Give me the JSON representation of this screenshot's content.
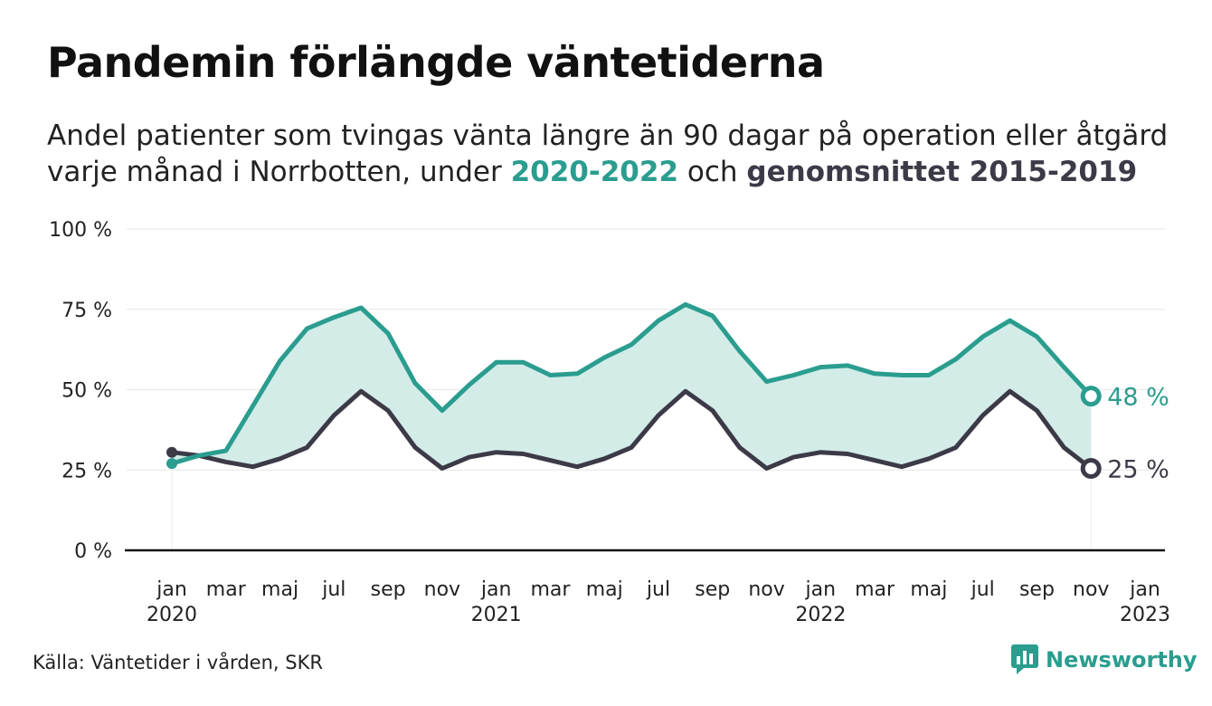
{
  "colors": {
    "series_2020_2022": "#2a9d8f",
    "series_avg": "#3c3a47",
    "area_fill": "#d3ece8",
    "grid": "#e6e6e6",
    "axis": "#111111"
  },
  "title": "Pandemin förlängde väntetiderna",
  "subtitle": {
    "line1": "Andel patienter som tvingas vänta längre än 90 dagar på operation eller åtgärd",
    "line2_prefix": "varje månad i Norrbotten, under ",
    "highlight_a": "2020-2022",
    "middle": " och ",
    "highlight_b": "genomsnittet 2015-2019"
  },
  "source": "Källa: Väntetider i vården, SKR",
  "logo": {
    "text": "Newsworthy",
    "icon": "newsworthy-bar-chart-icon"
  },
  "chart_data": {
    "type": "area",
    "y_ticks": [
      "0 %",
      "25 %",
      "50 %",
      "75 %",
      "100 %"
    ],
    "ylim": [
      0,
      100
    ],
    "x_ticks": [
      {
        "date": "2020-01",
        "label": "jan",
        "year": "2020"
      },
      {
        "date": "2020-03",
        "label": "mar",
        "year": ""
      },
      {
        "date": "2020-05",
        "label": "maj",
        "year": ""
      },
      {
        "date": "2020-07",
        "label": "jul",
        "year": ""
      },
      {
        "date": "2020-09",
        "label": "sep",
        "year": ""
      },
      {
        "date": "2020-11",
        "label": "nov",
        "year": ""
      },
      {
        "date": "2021-01",
        "label": "jan",
        "year": "2021"
      },
      {
        "date": "2021-03",
        "label": "mar",
        "year": ""
      },
      {
        "date": "2021-05",
        "label": "maj",
        "year": ""
      },
      {
        "date": "2021-07",
        "label": "jul",
        "year": ""
      },
      {
        "date": "2021-09",
        "label": "sep",
        "year": ""
      },
      {
        "date": "2021-11",
        "label": "nov",
        "year": ""
      },
      {
        "date": "2022-01",
        "label": "jan",
        "year": "2022"
      },
      {
        "date": "2022-03",
        "label": "mar",
        "year": ""
      },
      {
        "date": "2022-05",
        "label": "maj",
        "year": ""
      },
      {
        "date": "2022-07",
        "label": "jul",
        "year": ""
      },
      {
        "date": "2022-09",
        "label": "sep",
        "year": ""
      },
      {
        "date": "2022-11",
        "label": "nov",
        "year": ""
      },
      {
        "date": "2023-01",
        "label": "jan",
        "year": "2023"
      }
    ],
    "x": [
      "2020-01",
      "2020-02",
      "2020-03",
      "2020-04",
      "2020-05",
      "2020-06",
      "2020-07",
      "2020-08",
      "2020-09",
      "2020-10",
      "2020-11",
      "2020-12",
      "2021-01",
      "2021-02",
      "2021-03",
      "2021-04",
      "2021-05",
      "2021-06",
      "2021-07",
      "2021-08",
      "2021-09",
      "2021-10",
      "2021-11",
      "2021-12",
      "2022-01",
      "2022-02",
      "2022-03",
      "2022-04",
      "2022-05",
      "2022-06",
      "2022-07",
      "2022-08",
      "2022-09",
      "2022-10",
      "2022-11",
      "2022-12"
    ],
    "series": [
      {
        "name": "2020-2022",
        "end_label": "48 %",
        "values": [
          27,
          29.5,
          31,
          45,
          59,
          69,
          72.5,
          75.5,
          67.5,
          52,
          43.5,
          51.5,
          58.5,
          58.5,
          54.5,
          55,
          60,
          64,
          71.5,
          76.5,
          73,
          62,
          52.5,
          54.5,
          57,
          57.5,
          55,
          54.5,
          54.5,
          59.5,
          66.5,
          71.5,
          66.5,
          57,
          48,
          null
        ]
      },
      {
        "name": "genomsnittet 2015-2019",
        "end_label": "25 %",
        "values": [
          30.5,
          29.5,
          27.5,
          26,
          28.5,
          32,
          42,
          49.5,
          43.5,
          32,
          25.5,
          29,
          30.5,
          30,
          28,
          26,
          28.5,
          32,
          42,
          49.5,
          43.5,
          32,
          25.5,
          29,
          30.5,
          30,
          28,
          26,
          28.5,
          32,
          42,
          49.5,
          43.5,
          32,
          25.5,
          null
        ]
      }
    ]
  }
}
